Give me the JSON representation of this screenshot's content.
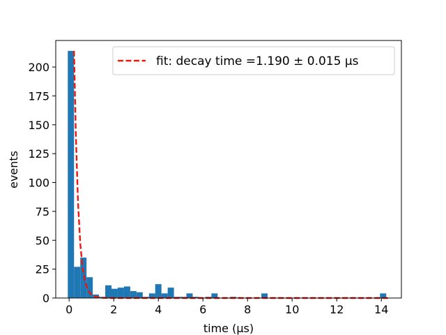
{
  "chart_data": {
    "type": "bar",
    "title": "",
    "xlabel": "time (μs)",
    "ylabel": "events",
    "xlim": [
      -0.6,
      14.9
    ],
    "ylim": [
      0,
      223
    ],
    "xticks": [
      0,
      2,
      4,
      6,
      8,
      10,
      12,
      14
    ],
    "yticks": [
      0,
      25,
      50,
      75,
      100,
      125,
      150,
      175,
      200
    ],
    "grid": false,
    "legend_position": "top-right",
    "bar_color": "#1f77b4",
    "bin_width": 0.28,
    "bins": [
      {
        "x": 0.08,
        "v": 214
      },
      {
        "x": 0.36,
        "v": 27
      },
      {
        "x": 0.64,
        "v": 35
      },
      {
        "x": 0.92,
        "v": 18
      },
      {
        "x": 1.2,
        "v": 3
      },
      {
        "x": 1.48,
        "v": 1
      },
      {
        "x": 1.76,
        "v": 11
      },
      {
        "x": 2.04,
        "v": 8
      },
      {
        "x": 2.32,
        "v": 9
      },
      {
        "x": 2.6,
        "v": 10
      },
      {
        "x": 2.88,
        "v": 6
      },
      {
        "x": 3.16,
        "v": 5
      },
      {
        "x": 3.44,
        "v": 1
      },
      {
        "x": 3.72,
        "v": 4
      },
      {
        "x": 4.0,
        "v": 12
      },
      {
        "x": 4.28,
        "v": 4
      },
      {
        "x": 4.56,
        "v": 9
      },
      {
        "x": 4.84,
        "v": 1
      },
      {
        "x": 5.12,
        "v": 1
      },
      {
        "x": 5.4,
        "v": 4
      },
      {
        "x": 5.68,
        "v": 1
      },
      {
        "x": 6.24,
        "v": 1
      },
      {
        "x": 6.52,
        "v": 4
      },
      {
        "x": 7.36,
        "v": 1
      },
      {
        "x": 8.76,
        "v": 4
      },
      {
        "x": 14.08,
        "v": 4
      }
    ],
    "series": [
      {
        "name": "fit: decay time =1.190 ± 0.015 μs",
        "style": "dashed",
        "color": "#e8190f",
        "x": [
          0.22,
          0.3,
          0.4,
          0.5,
          0.6,
          0.7,
          0.8,
          0.9,
          1.0,
          1.2,
          1.5,
          2.0,
          3.0,
          5.0,
          8.0,
          11.0,
          14.3
        ],
        "y": [
          214,
          142,
          82,
          47,
          27,
          16,
          9,
          5,
          3,
          1,
          0.2,
          0,
          0,
          0,
          0,
          0,
          0
        ]
      }
    ]
  }
}
